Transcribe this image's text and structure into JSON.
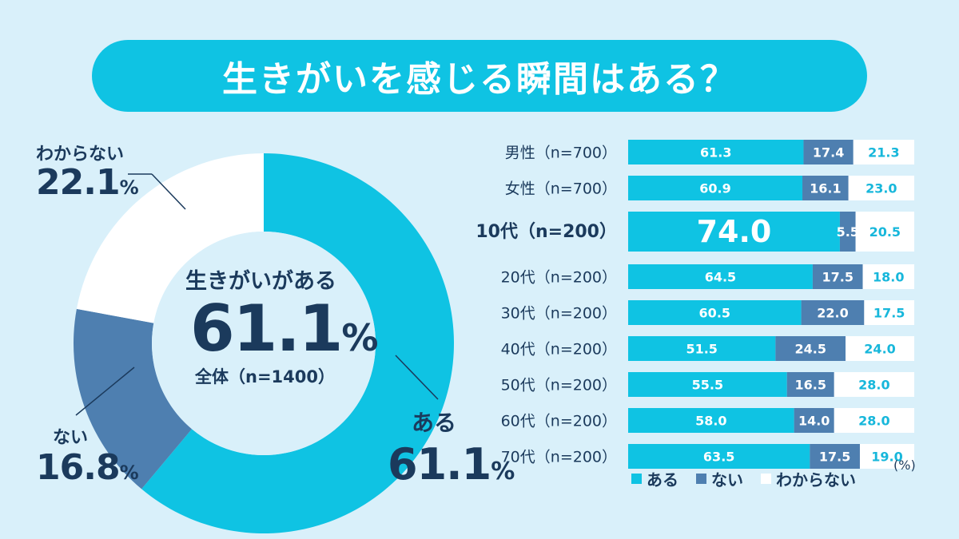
{
  "title": "生きがいを感じる瞬間はある？",
  "colors": {
    "aru": "#0fc3e3",
    "nai": "#4e7fb0",
    "wakaranai": "#ffffff",
    "text": "#1b3a5c",
    "value_on_dark": "#ffffff",
    "value_on_light": "#17b7db"
  },
  "donut": {
    "center_label": "生きがいがある",
    "center_value": "61.1",
    "center_unit": "%",
    "center_sub": "全体（n=1400）",
    "slices": [
      {
        "label": "ある",
        "value": "61.1",
        "unit": "%"
      },
      {
        "label": "ない",
        "value": "16.8",
        "unit": "%"
      },
      {
        "label": "わからない",
        "value": "22.1",
        "unit": "%"
      }
    ]
  },
  "chart_data": [
    {
      "type": "pie",
      "title": "",
      "labels": [
        "ある",
        "ない",
        "わからない"
      ],
      "values": [
        61.1,
        16.8,
        22.1
      ]
    },
    {
      "type": "bar",
      "orientation": "horizontal",
      "stacked": true,
      "categories": [
        "男性（n=700）",
        "女性（n=700）",
        "10代（n=200）",
        "20代（n=200）",
        "30代（n=200）",
        "40代（n=200）",
        "50代（n=200）",
        "60代（n=200）",
        "70代（n=200）"
      ],
      "series": [
        {
          "name": "ある",
          "values": [
            61.3,
            60.9,
            74.0,
            64.5,
            60.5,
            51.5,
            55.5,
            58.0,
            63.5
          ]
        },
        {
          "name": "ない",
          "values": [
            17.4,
            16.1,
            5.5,
            17.5,
            22.0,
            24.5,
            16.5,
            14.0,
            17.5
          ]
        },
        {
          "name": "わからない",
          "values": [
            21.3,
            23.0,
            20.5,
            18.0,
            17.5,
            24.0,
            28.0,
            28.0,
            19.0
          ]
        }
      ],
      "highlight_category": "10代（n=200）",
      "unit_label": "(%)",
      "xlim": [
        0,
        100
      ],
      "legend_position": "bottom"
    }
  ]
}
